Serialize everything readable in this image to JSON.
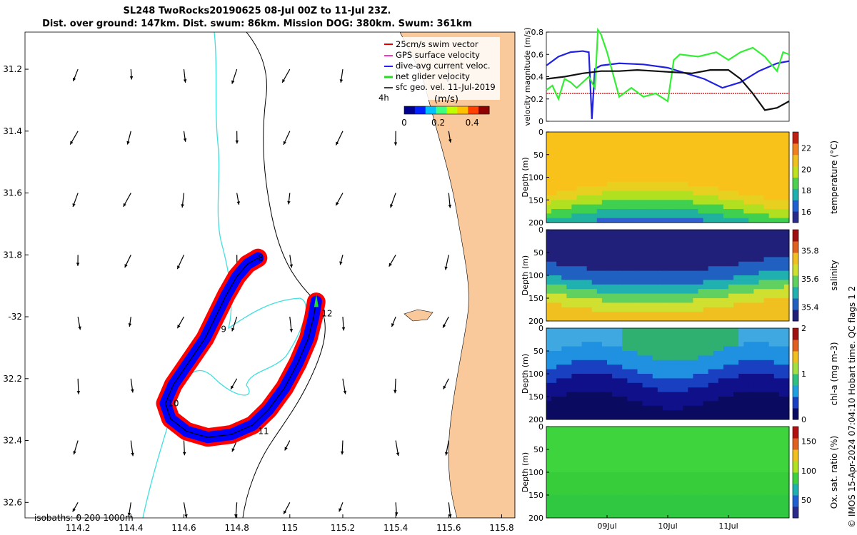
{
  "header": {
    "title_line1": "SL248 TwoRocks20190625 08-Jul 00Z to 11-Jul 23Z.",
    "title_line2": "Dist. over ground: 147km. Dist. swum: 86km. Mission DOG: 380km. Swum: 361km"
  },
  "colors": {
    "land": "#f9c99b",
    "isobath200": "#000000",
    "isobath1000": "#40e0e0",
    "track_red": "#ff0000",
    "track_blue": "#0000ff",
    "track_green": "#22dd22",
    "sat_black": "#111111",
    "sat_blue": "#2020e0",
    "sat_green": "#33ee33",
    "sat_red": "#dd2222"
  },
  "chart_data": [
    {
      "type": "scatter",
      "name": "map",
      "xlim": [
        114.0,
        115.85
      ],
      "ylim": [
        -32.65,
        -31.08
      ],
      "xticks": [
        114.2,
        114.4,
        114.6,
        114.8,
        115,
        115.2,
        115.4,
        115.6,
        115.8
      ],
      "xtick_labels": [
        "114.2",
        "114.4",
        "114.6",
        "114.8",
        "115",
        "115.2",
        "115.4",
        "115.6",
        "115.8"
      ],
      "yticks": [
        -31.2,
        -31.4,
        -31.6,
        -31.8,
        -32,
        -32.2,
        -32.4,
        -32.6
      ],
      "ytick_labels": [
        "31.2",
        "31.4",
        "31.6",
        "31.8",
        "-32",
        "32.2",
        "32.4",
        "32.6"
      ],
      "isobath_label": "isobaths: 0   200  1000m",
      "legend": [
        "25cm/s swim vector",
        "GPS surface velocity",
        "dive-avg current veloc.",
        "net glider velocity",
        "sfc geo. vel. 11-Jul-2019"
      ],
      "legend_time_label": "4h",
      "colorbar": {
        "label": "(m/s)",
        "ticks": [
          0,
          0.2,
          0.4
        ],
        "tick_labels": [
          "0",
          "0.2",
          "0.4"
        ],
        "range": [
          0,
          0.5
        ]
      },
      "track_day_labels": [
        {
          "text": "8",
          "lon": 114.88,
          "lat": -31.81
        },
        {
          "text": "9",
          "lon": 114.74,
          "lat": -32.04
        },
        {
          "text": "10",
          "lon": 114.54,
          "lat": -32.28
        },
        {
          "text": "11",
          "lon": 114.88,
          "lat": -32.37
        },
        {
          "text": "12",
          "lon": 115.12,
          "lat": -31.99
        }
      ],
      "track": [
        [
          114.88,
          -31.81
        ],
        [
          114.84,
          -31.83
        ],
        [
          114.8,
          -31.87
        ],
        [
          114.76,
          -31.93
        ],
        [
          114.72,
          -32.0
        ],
        [
          114.68,
          -32.07
        ],
        [
          114.64,
          -32.12
        ],
        [
          114.6,
          -32.17
        ],
        [
          114.56,
          -32.22
        ],
        [
          114.53,
          -32.28
        ],
        [
          114.55,
          -32.33
        ],
        [
          114.61,
          -32.37
        ],
        [
          114.69,
          -32.39
        ],
        [
          114.78,
          -32.38
        ],
        [
          114.86,
          -32.35
        ],
        [
          114.92,
          -32.3
        ],
        [
          114.98,
          -32.23
        ],
        [
          115.03,
          -32.15
        ],
        [
          115.07,
          -32.07
        ],
        [
          115.09,
          -32.0
        ],
        [
          115.1,
          -31.95
        ]
      ]
    },
    {
      "type": "line",
      "name": "velocity",
      "ylabel": "velocity magnitude (m/s)",
      "ylim": [
        0,
        0.8
      ],
      "yticks": [
        0,
        0.2,
        0.4,
        0.6,
        0.8
      ],
      "ytick_labels": [
        "0",
        "0.2",
        "0.4",
        "0.6",
        "0.8"
      ],
      "xlim": [
        0,
        4
      ],
      "series": [
        {
          "name": "swim",
          "x": [
            0,
            4
          ],
          "y": [
            0.25,
            0.25
          ]
        },
        {
          "name": "dive-avg current",
          "x": [
            0,
            0.2,
            0.4,
            0.6,
            0.7,
            0.75,
            0.8,
            0.9,
            1.2,
            1.6,
            2.0,
            2.3,
            2.6,
            2.9,
            3.2,
            3.5,
            3.8,
            4.0
          ],
          "y": [
            0.5,
            0.58,
            0.62,
            0.63,
            0.62,
            0.02,
            0.47,
            0.5,
            0.52,
            0.51,
            0.48,
            0.43,
            0.38,
            0.3,
            0.35,
            0.45,
            0.52,
            0.54
          ]
        },
        {
          "name": "net glider",
          "x": [
            0,
            0.1,
            0.2,
            0.3,
            0.4,
            0.5,
            0.6,
            0.7,
            0.8,
            0.85,
            0.9,
            1.0,
            1.1,
            1.2,
            1.4,
            1.6,
            1.8,
            2.0,
            2.1,
            2.2,
            2.5,
            2.8,
            3.0,
            3.2,
            3.4,
            3.6,
            3.8,
            3.9,
            4.0
          ],
          "y": [
            0.28,
            0.32,
            0.2,
            0.38,
            0.35,
            0.3,
            0.35,
            0.4,
            0.3,
            0.82,
            0.78,
            0.62,
            0.42,
            0.22,
            0.3,
            0.22,
            0.25,
            0.18,
            0.55,
            0.6,
            0.58,
            0.62,
            0.55,
            0.62,
            0.66,
            0.58,
            0.45,
            0.62,
            0.6
          ]
        },
        {
          "name": "sfc geo",
          "x": [
            0,
            0.3,
            0.6,
            0.9,
            1.2,
            1.5,
            1.8,
            2.1,
            2.4,
            2.7,
            3.0,
            3.2,
            3.4,
            3.6,
            3.8,
            4.0
          ],
          "y": [
            0.38,
            0.4,
            0.43,
            0.45,
            0.45,
            0.46,
            0.45,
            0.44,
            0.43,
            0.46,
            0.46,
            0.38,
            0.25,
            0.1,
            0.12,
            0.18
          ]
        }
      ]
    },
    {
      "type": "heatmap",
      "name": "temperature",
      "ylabel": "Depth (m)",
      "yticks": [
        0,
        50,
        100,
        150,
        200
      ],
      "ytick_labels": [
        "0",
        "50",
        "100",
        "150",
        "200"
      ],
      "cbar_label": "temperature (°C)",
      "cbar_range": [
        15,
        23.5
      ],
      "cbar_ticks": [
        16,
        18,
        20,
        22
      ],
      "cbar_tick_labels": [
        "16",
        "18",
        "20",
        "22"
      ]
    },
    {
      "type": "heatmap",
      "name": "salinity",
      "ylabel": "Depth (m)",
      "yticks": [
        0,
        50,
        100,
        150,
        200
      ],
      "ytick_labels": [
        "0",
        "50",
        "100",
        "150",
        "200"
      ],
      "cbar_label": "salinity",
      "cbar_range": [
        35.3,
        35.95
      ],
      "cbar_ticks": [
        35.4,
        35.6,
        35.8
      ],
      "cbar_tick_labels": [
        "35.4",
        "35.6",
        "35.8"
      ]
    },
    {
      "type": "heatmap",
      "name": "chla",
      "ylabel": "Depth (m)",
      "yticks": [
        0,
        50,
        100,
        150,
        200
      ],
      "ytick_labels": [
        "0",
        "50",
        "100",
        "150",
        "200"
      ],
      "cbar_label": "chl-a (mg m-3)",
      "cbar_range": [
        0,
        2
      ],
      "cbar_ticks": [
        0,
        1,
        2
      ],
      "cbar_tick_labels": [
        "0",
        "1",
        "2"
      ]
    },
    {
      "type": "heatmap",
      "name": "oxygen",
      "ylabel": "Depth (m)",
      "yticks": [
        0,
        50,
        100,
        150,
        200
      ],
      "ytick_labels": [
        "0",
        "50",
        "100",
        "150",
        "200"
      ],
      "cbar_label": "Ox. sat. ratio (%)",
      "cbar_range": [
        20,
        175
      ],
      "cbar_ticks": [
        50,
        100,
        150
      ],
      "cbar_tick_labels": [
        "50",
        "100",
        "150"
      ],
      "xticks": [
        1,
        2,
        3
      ],
      "xtick_labels": [
        "09Jul",
        "10Jul",
        "11Jul"
      ],
      "xlim": [
        0,
        4
      ]
    }
  ],
  "footer": {
    "credit": "© IMOS 15-Apr-2024 07:04:10 Hobart time. QC flags 1  2"
  }
}
